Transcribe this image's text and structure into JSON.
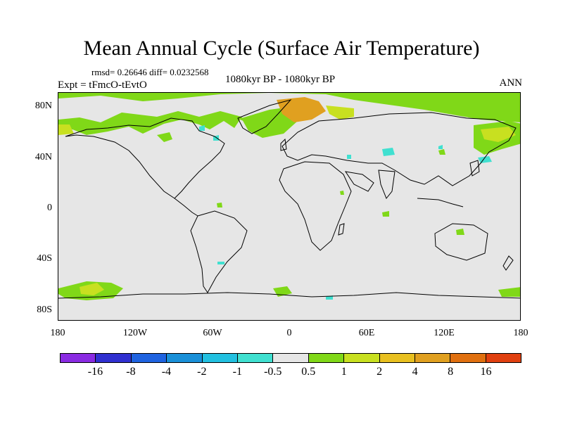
{
  "title": "Mean Annual Cycle (Surface Air Temperature)",
  "stats": "rmsd= 0.26646 diff= 0.0232568",
  "experiment": "Expt = tFmcO-tEvtO",
  "period": "1080kyr BP - 1080kyr BP",
  "season": "ANN",
  "lat_labels": [
    "80N",
    "40N",
    "0",
    "40S",
    "80S"
  ],
  "lon_labels": [
    "180",
    "120W",
    "60W",
    "0",
    "60E",
    "120E",
    "180"
  ],
  "colorbar": {
    "colors": [
      "#8a2be2",
      "#3030d0",
      "#1f63e0",
      "#1a90d8",
      "#22c0e0",
      "#40e0d0",
      "#e6e6e6",
      "#80d818",
      "#c8e020",
      "#e8c020",
      "#e0a020",
      "#e07010",
      "#e04010"
    ],
    "labels": [
      "-16",
      "-8",
      "-4",
      "-2",
      "-1",
      "-0.5",
      "0.5",
      "1",
      "2",
      "4",
      "8",
      "16"
    ]
  }
}
